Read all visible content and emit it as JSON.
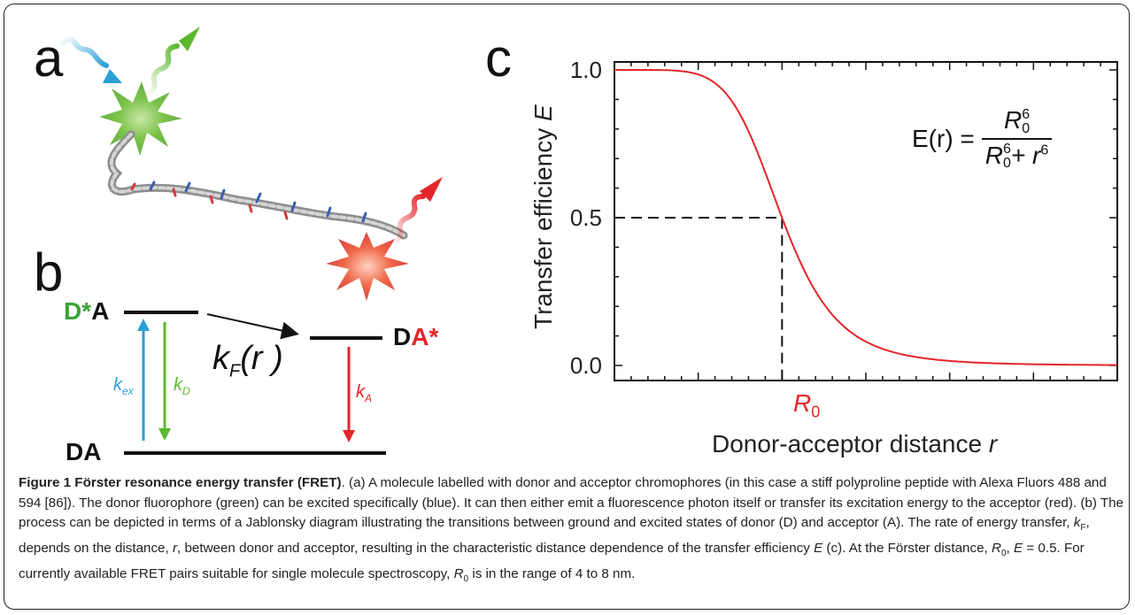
{
  "panels": {
    "a": "a",
    "b": "b",
    "c": "c"
  },
  "jablonski": {
    "donor_excited": {
      "prefix": "D*",
      "suffix": "A"
    },
    "acceptor_excited": {
      "prefix": "D",
      "suffix": "A*"
    },
    "ground": "DA",
    "k_ex": {
      "k": "k",
      "sub": "ex"
    },
    "k_D": {
      "k": "k",
      "sub": "D"
    },
    "k_A": {
      "k": "k",
      "sub": "A"
    },
    "k_F": {
      "k": "k",
      "sub": "F",
      "arg": "(r )"
    },
    "colors": {
      "excitation": "#2a9fd6",
      "donor": "#5cb82e",
      "acceptor": "#e3262a",
      "text": "#111111"
    }
  },
  "equation": {
    "lhs": "E(r) =",
    "num": "R",
    "num_sub": "0",
    "num_sup": "6",
    "den_a": "R",
    "den_a_sub": "0",
    "den_a_sup": "6",
    "den_plus": "+ r",
    "den_sup": "6"
  },
  "chart_data": {
    "type": "line",
    "title": "",
    "xlabel": "Donor-acceptor distance",
    "xlabel_var": "r",
    "ylabel": "Transfer efficiency",
    "ylabel_var": "E",
    "ylim": [
      0,
      1.05
    ],
    "xlim": [
      0,
      3
    ],
    "yticks": [
      "0.0",
      "0.5",
      "1.0"
    ],
    "xtick_label": {
      "symbol": "R",
      "sub": "0"
    },
    "series": [
      {
        "function": "1/(1+x^6)",
        "x_unit": "R0",
        "color": "#e3262a"
      }
    ],
    "reference_point": {
      "x": 1,
      "y": 0.5,
      "style": "dashed"
    }
  },
  "caption": {
    "title": "Figure 1 Förster resonance energy transfer (FRET)",
    "s1": ". (a) A molecule labelled with donor and acceptor chromophores (in this case a stiff polyproline peptide with Alexa Fluors 488 and 594 [86]). The donor fluorophore (green) can be excited specifically (blue). It can then either emit a fluorescence photon itself or transfer its excitation energy to the acceptor (red). (b) The process can be depicted in terms of a Jablonsky diagram illustrating the transitions between ground and excited states of donor (D) and acceptor (A). The rate of energy transfer, ",
    "kF_k": "k",
    "kF_sub": "F",
    "s2": ", depends on the distance, ",
    "r": "r",
    "s3": ", between donor and acceptor, resulting in the characteristic distance dependence of the transfer efficiency ",
    "E": "E",
    "s4": " (c). At the Förster distance, ",
    "R0_R": "R",
    "R0_sub": "0",
    "s5": ", ",
    "E2": "E",
    "s6": " = 0.5. For currently available FRET pairs suitable for single molecule spectroscopy, ",
    "s7": " is in the range of 4 to 8 nm."
  }
}
